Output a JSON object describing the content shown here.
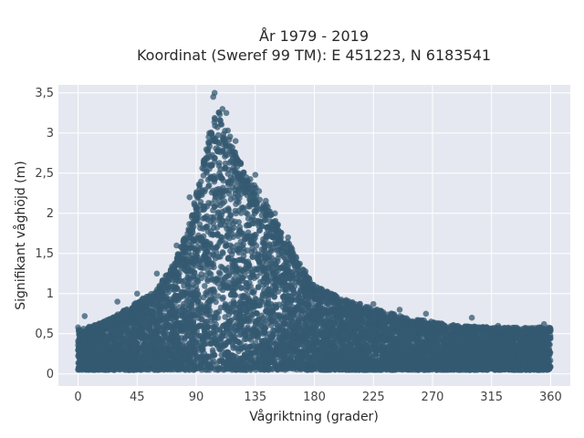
{
  "chart_data": {
    "type": "scatter",
    "title_line1": "År 1979 - 2019",
    "title_line2": "Koordinat (Sweref 99 TM): E 451223, N 6183541",
    "xlabel": "Vågriktning (grader)",
    "ylabel": "Signifikant våghöjd (m)",
    "xlim": [
      -15,
      375
    ],
    "ylim": [
      -0.15,
      3.6
    ],
    "xticks": [
      0,
      45,
      90,
      135,
      180,
      225,
      270,
      315,
      360
    ],
    "xtick_labels": [
      "0",
      "45",
      "90",
      "135",
      "180",
      "225",
      "270",
      "315",
      "360"
    ],
    "yticks": [
      0,
      0.5,
      1,
      1.5,
      2,
      2.5,
      3,
      3.5
    ],
    "ytick_labels": [
      "0",
      "0,5",
      "1",
      "1,5",
      "2",
      "2,5",
      "3",
      "3,5"
    ],
    "grid": true,
    "marker_color": "#345a72",
    "plot_bg": "#e5e8f0",
    "envelope": {
      "direction": [
        0,
        15,
        30,
        45,
        60,
        75,
        85,
        95,
        100,
        105,
        110,
        115,
        120,
        130,
        140,
        150,
        165,
        180,
        200,
        225,
        250,
        270,
        290,
        315,
        335,
        360
      ],
      "max_height": [
        0.55,
        0.62,
        0.75,
        0.9,
        1.05,
        1.45,
        1.9,
        2.6,
        3.0,
        3.3,
        3.2,
        3.0,
        2.75,
        2.45,
        2.25,
        1.95,
        1.5,
        1.1,
        0.95,
        0.82,
        0.7,
        0.65,
        0.6,
        0.58,
        0.58,
        0.58
      ]
    },
    "sample_points": [
      {
        "x": 104,
        "y": 3.5
      },
      {
        "x": 103,
        "y": 3.45
      },
      {
        "x": 110,
        "y": 3.3
      },
      {
        "x": 113,
        "y": 3.25
      },
      {
        "x": 100,
        "y": 3.0
      },
      {
        "x": 120,
        "y": 2.9
      },
      {
        "x": 135,
        "y": 2.48
      },
      {
        "x": 130,
        "y": 2.35
      },
      {
        "x": 150,
        "y": 2.0
      },
      {
        "x": 160,
        "y": 1.7
      },
      {
        "x": 85,
        "y": 2.2
      },
      {
        "x": 75,
        "y": 1.6
      },
      {
        "x": 60,
        "y": 1.25
      },
      {
        "x": 45,
        "y": 1.0
      },
      {
        "x": 30,
        "y": 0.9
      },
      {
        "x": 5,
        "y": 0.72
      },
      {
        "x": 0,
        "y": 0.58
      },
      {
        "x": 180,
        "y": 1.05
      },
      {
        "x": 225,
        "y": 0.87
      },
      {
        "x": 245,
        "y": 0.8
      },
      {
        "x": 265,
        "y": 0.75
      },
      {
        "x": 300,
        "y": 0.7
      },
      {
        "x": 320,
        "y": 0.6
      },
      {
        "x": 355,
        "y": 0.62
      },
      {
        "x": 360,
        "y": 0.55
      }
    ]
  }
}
